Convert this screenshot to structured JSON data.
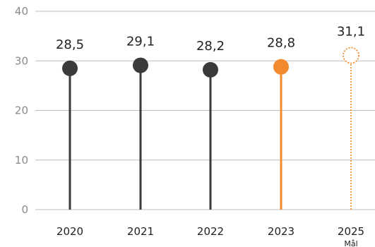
{
  "chart_data": {
    "type": "lollipop",
    "title": "",
    "xlabel": "",
    "ylabel": "",
    "ylim": [
      0,
      40
    ],
    "yticks": [
      0,
      10,
      20,
      30,
      40
    ],
    "grid": true,
    "categories": [
      "2020",
      "2021",
      "2022",
      "2023",
      "2025"
    ],
    "values": [
      28.5,
      29.1,
      28.2,
      28.8,
      31.1
    ],
    "value_labels": [
      "28,5",
      "29,1",
      "28,2",
      "28,8",
      "31,1"
    ],
    "point_styles": [
      "solid",
      "solid",
      "solid",
      "solid",
      "dotted-hollow"
    ],
    "colors": [
      "#3a3a3a",
      "#3a3a3a",
      "#3a3a3a",
      "#f28a2e",
      "#f28a2e"
    ],
    "annotations": [
      {
        "category": "2025",
        "text": "Mål"
      }
    ]
  }
}
